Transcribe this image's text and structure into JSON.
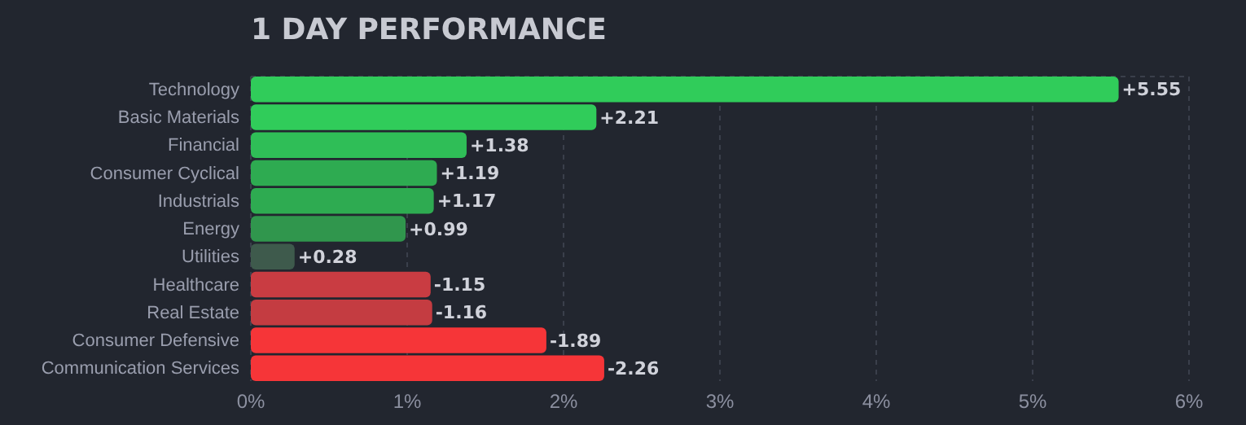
{
  "chart_data": {
    "type": "bar",
    "orientation": "horizontal",
    "title": "1 DAY PERFORMANCE",
    "categories": [
      "Technology",
      "Basic Materials",
      "Financial",
      "Consumer Cyclical",
      "Industrials",
      "Energy",
      "Utilities",
      "Healthcare",
      "Real Estate",
      "Consumer Defensive",
      "Communication Services"
    ],
    "values": [
      5.55,
      2.21,
      1.38,
      1.19,
      1.17,
      0.99,
      0.28,
      -1.15,
      -1.16,
      -1.89,
      -2.26
    ],
    "base": [
      0,
      0,
      0,
      0,
      0,
      0,
      0,
      1.15,
      1.16,
      1.89,
      2.26
    ],
    "value_labels": [
      "+5.55",
      "+2.21",
      "+1.38",
      "+1.19",
      "+1.17",
      "+0.99",
      "+0.28",
      "-1.15",
      "-1.16",
      "-1.89",
      "-2.26"
    ],
    "colors": [
      "#30cc5a",
      "#30cc5a",
      "#2fbe57",
      "#2eab51",
      "#2eab51",
      "#30964d",
      "#3e5a4c",
      "#c93c42",
      "#c43c41",
      "#f63538",
      "#f63538"
    ],
    "xlim": [
      0,
      6
    ],
    "xticks": [
      {
        "value": 0,
        "label": "0%"
      },
      {
        "value": 1,
        "label": "1%"
      },
      {
        "value": 2,
        "label": "2%"
      },
      {
        "value": 3,
        "label": "3%"
      },
      {
        "value": 4,
        "label": "4%"
      },
      {
        "value": 5,
        "label": "5%"
      },
      {
        "value": 6,
        "label": "6%"
      }
    ],
    "grid": "x"
  }
}
